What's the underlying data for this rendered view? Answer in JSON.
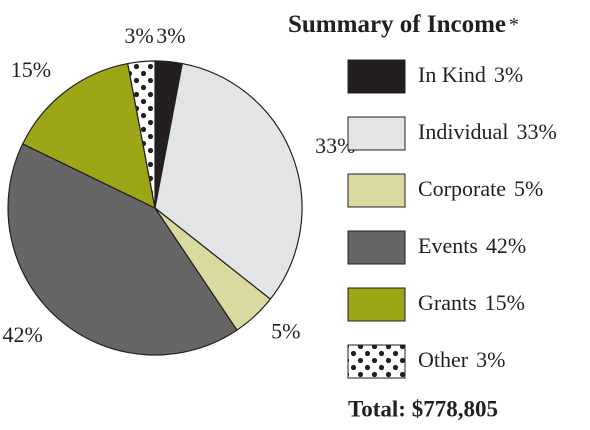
{
  "chart_data": {
    "type": "pie",
    "title": "Summary of Income",
    "title_mark": "*",
    "categories": [
      "In Kind",
      "Individual",
      "Corporate",
      "Events",
      "Grants",
      "Other"
    ],
    "values": [
      3,
      33,
      5,
      42,
      15,
      3
    ],
    "value_labels": [
      "3%",
      "33%",
      "5%",
      "42%",
      "15%",
      "3%"
    ],
    "colors": [
      "#231f20",
      "#e3e4e5",
      "#d9d9a0",
      "#666666",
      "#9ea617",
      "#ffffff"
    ],
    "patterns": [
      null,
      null,
      null,
      null,
      null,
      "dots"
    ],
    "annotation": "Total: $778,805"
  }
}
